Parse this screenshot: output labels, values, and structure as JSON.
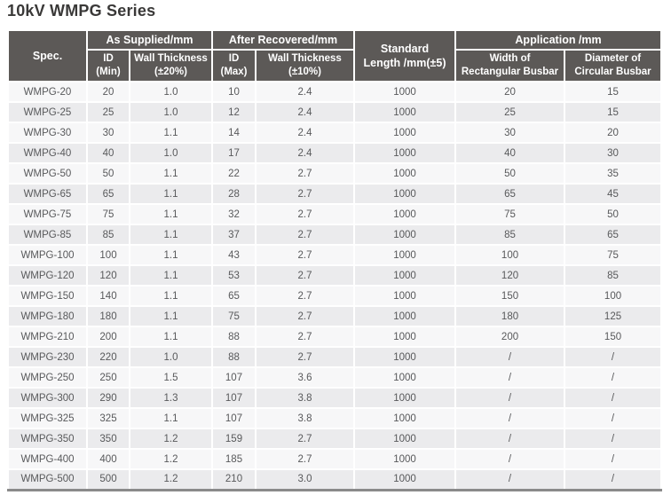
{
  "page_title": "10kV WMPG Series",
  "table": {
    "header": {
      "spec": "Spec.",
      "groups": [
        {
          "label": "As Supplied/mm",
          "children": [
            {
              "line1": "ID",
              "line2": "(Min)"
            },
            {
              "line1": "Wall Thickness",
              "line2": "(±20%)"
            }
          ]
        },
        {
          "label": "After Recovered/mm",
          "children": [
            {
              "line1": "ID",
              "line2": "(Max)"
            },
            {
              "line1": "Wall Thickness",
              "line2": "(±10%)"
            }
          ]
        },
        {
          "label": "Application /mm",
          "children": [
            {
              "line1": "Width of",
              "line2": "Rectangular Busbar"
            },
            {
              "line1": "Diameter of",
              "line2": "Circular Busbar"
            }
          ]
        }
      ],
      "standard_length": {
        "line1": "Standard",
        "line2": "Length /mm(±5)"
      }
    },
    "rows": [
      [
        "WMPG-20",
        "20",
        "1.0",
        "10",
        "2.4",
        "1000",
        "20",
        "15"
      ],
      [
        "WMPG-25",
        "25",
        "1.0",
        "12",
        "2.4",
        "1000",
        "25",
        "15"
      ],
      [
        "WMPG-30",
        "30",
        "1.1",
        "14",
        "2.4",
        "1000",
        "30",
        "20"
      ],
      [
        "WMPG-40",
        "40",
        "1.0",
        "17",
        "2.4",
        "1000",
        "40",
        "30"
      ],
      [
        "WMPG-50",
        "50",
        "1.1",
        "22",
        "2.7",
        "1000",
        "50",
        "35"
      ],
      [
        "WMPG-65",
        "65",
        "1.1",
        "28",
        "2.7",
        "1000",
        "65",
        "45"
      ],
      [
        "WMPG-75",
        "75",
        "1.1",
        "32",
        "2.7",
        "1000",
        "75",
        "50"
      ],
      [
        "WMPG-85",
        "85",
        "1.1",
        "37",
        "2.7",
        "1000",
        "85",
        "65"
      ],
      [
        "WMPG-100",
        "100",
        "1.1",
        "43",
        "2.7",
        "1000",
        "100",
        "75"
      ],
      [
        "WMPG-120",
        "120",
        "1.1",
        "53",
        "2.7",
        "1000",
        "120",
        "85"
      ],
      [
        "WMPG-150",
        "140",
        "1.1",
        "65",
        "2.7",
        "1000",
        "150",
        "100"
      ],
      [
        "WMPG-180",
        "180",
        "1.1",
        "75",
        "2.7",
        "1000",
        "180",
        "125"
      ],
      [
        "WMPG-210",
        "200",
        "1.1",
        "88",
        "2.7",
        "1000",
        "200",
        "150"
      ],
      [
        "WMPG-230",
        "220",
        "1.0",
        "88",
        "2.7",
        "1000",
        "/",
        "/"
      ],
      [
        "WMPG-250",
        "250",
        "1.5",
        "107",
        "3.6",
        "1000",
        "/",
        "/"
      ],
      [
        "WMPG-300",
        "290",
        "1.3",
        "107",
        "3.8",
        "1000",
        "/",
        "/"
      ],
      [
        "WMPG-325",
        "325",
        "1.1",
        "107",
        "3.8",
        "1000",
        "/",
        "/"
      ],
      [
        "WMPG-350",
        "350",
        "1.2",
        "159",
        "2.7",
        "1000",
        "/",
        "/"
      ],
      [
        "WMPG-400",
        "400",
        "1.2",
        "185",
        "2.7",
        "1000",
        "/",
        "/"
      ],
      [
        "WMPG-500",
        "500",
        "1.2",
        "210",
        "3.0",
        "1000",
        "/",
        "/"
      ]
    ]
  },
  "colors": {
    "header_bg": "#5c5957",
    "row_light": "#f7f7f8",
    "row_dark": "#ebebed",
    "bottom_border": "#8a8a8a",
    "data_text": "#58595b",
    "title_text": "#3a3938"
  }
}
